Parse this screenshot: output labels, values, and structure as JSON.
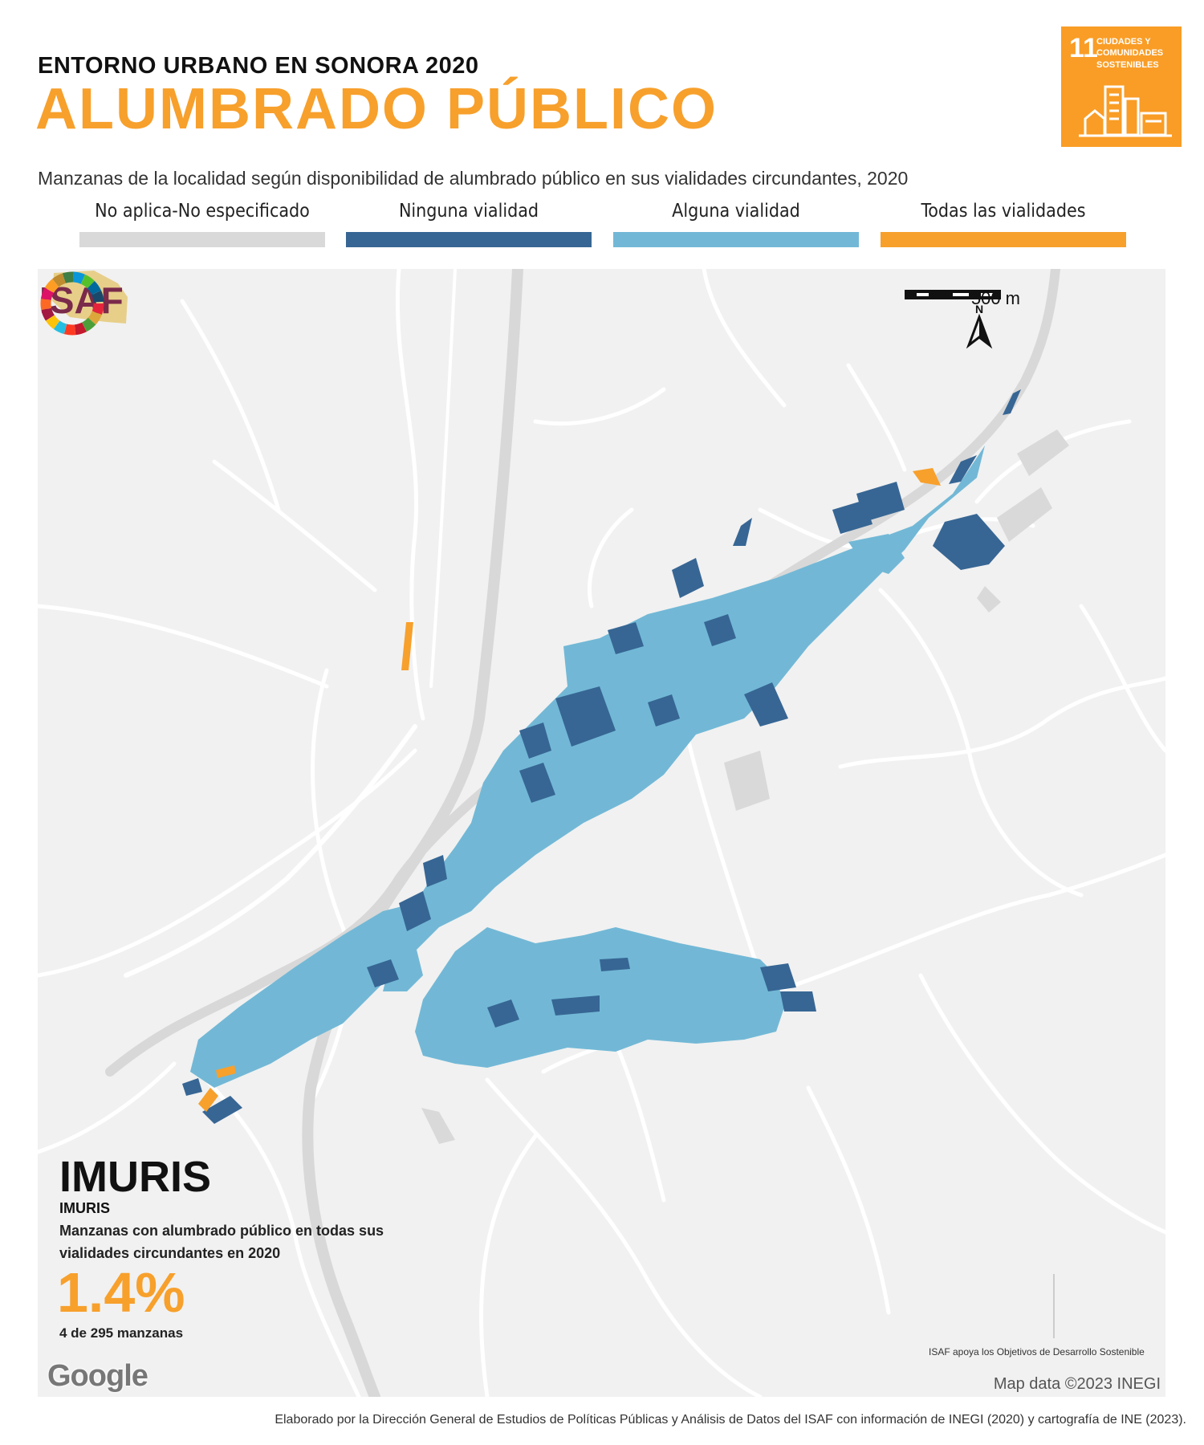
{
  "header": {
    "supertitle": "ENTORNO URBANO EN SONORA 2020",
    "title": "ALUMBRADO PÚBLICO",
    "subtitle": "Manzanas de la localidad según disponibilidad de alumbrado público en sus vialidades circundantes, 2020"
  },
  "sdg_badge": {
    "number": "11",
    "text": "CIUDADES Y COMUNIDADES SOSTENIBLES",
    "color": "#F99D26"
  },
  "legend": [
    {
      "label": "No aplica-No especificado",
      "color": "#D9D9D9"
    },
    {
      "label": "Ninguna vialidad",
      "color": "#376694"
    },
    {
      "label": "Alguna vialidad",
      "color": "#72B8D6"
    },
    {
      "label": "Todas las vialidades",
      "color": "#F7A02C"
    }
  ],
  "map": {
    "scale_label": "500 m",
    "north_label": "N",
    "google_label": "Google",
    "attribution": "Map data ©2023 INEGI"
  },
  "location": {
    "municipality": "IMURIS",
    "locality": "IMURIS"
  },
  "indicator": {
    "label": "Manzanas con alumbrado público en todas sus vialidades circundantes en 2020",
    "value": "1.4%",
    "count": "4 de 295 manzanas"
  },
  "isaf": {
    "logo_text": "ISAF",
    "caption": "ISAF apoya los Objetivos de Desarrollo Sostenible"
  },
  "footer": "Elaborado por la Dirección General de Estudios de Políticas Públicas y Análisis de Datos del ISAF con información de INEGI (2020) y cartografía de INE (2023)."
}
